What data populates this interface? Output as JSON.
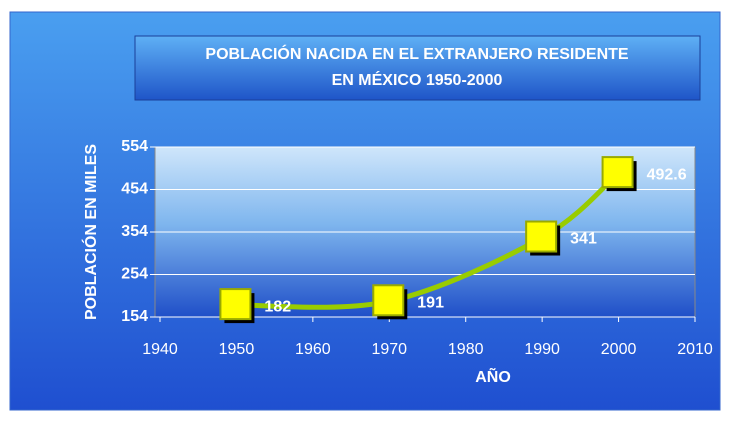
{
  "chart_data": {
    "type": "line",
    "title": [
      "POBLACIÓN NACIDA EN EL EXTRANJERO RESIDENTE",
      "EN MÉXICO  1950-2000"
    ],
    "x_label": "AÑO",
    "y_label": "POBLACIÓN EN MILES",
    "x": [
      1950,
      1970,
      1990,
      2000
    ],
    "series": [
      {
        "color": "#99cc00",
        "marker_color": "#ffff00",
        "values": [
          182,
          191,
          341,
          492.6
        ]
      }
    ],
    "xlim": [
      1940,
      2010
    ],
    "xticks": [
      1940,
      1950,
      1960,
      1970,
      1980,
      1990,
      2000,
      2010
    ],
    "ylim": [
      154,
      554
    ],
    "yticks": [
      154,
      254,
      354,
      454,
      554
    ],
    "grid": true
  }
}
